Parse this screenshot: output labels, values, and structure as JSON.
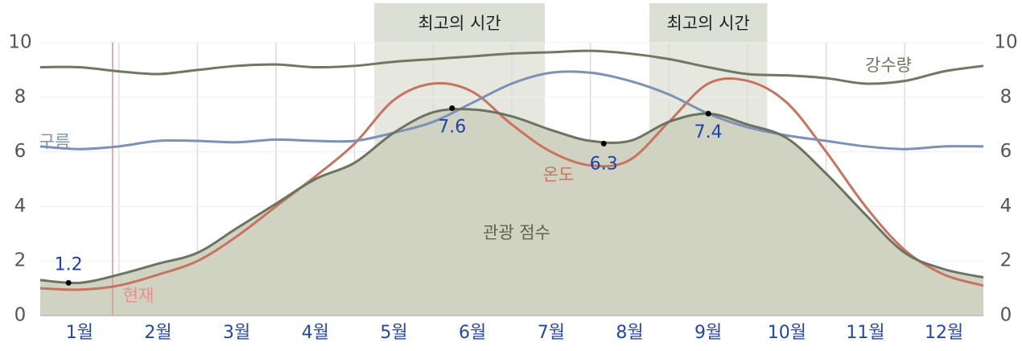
{
  "chart_data": {
    "type": "line",
    "categories": [
      "1월",
      "2월",
      "3월",
      "4월",
      "5월",
      "6월",
      "7월",
      "8월",
      "9월",
      "10월",
      "11월",
      "12월"
    ],
    "x": [
      0,
      0.5,
      1,
      1.5,
      2,
      2.5,
      3,
      3.5,
      4,
      4.5,
      5,
      5.5,
      6,
      6.5,
      7,
      7.5,
      8,
      8.5,
      9,
      9.5,
      10,
      10.5,
      11,
      11.5,
      12
    ],
    "xlim": [
      0,
      12
    ],
    "ylim": [
      0,
      10
    ],
    "yticks": [
      0,
      2,
      4,
      6,
      8,
      10
    ],
    "y2lim": [
      0,
      10
    ],
    "y2ticks": [
      0,
      2,
      4,
      6,
      8,
      10
    ],
    "grid": true,
    "series": [
      {
        "name": "관광 점수",
        "color": "#6b7361",
        "fill": "#d0d3c2",
        "area": true,
        "values": [
          1.3,
          1.2,
          1.5,
          1.9,
          2.3,
          3.2,
          4.1,
          5.0,
          5.6,
          6.7,
          7.45,
          7.55,
          7.3,
          6.8,
          6.4,
          6.4,
          7.1,
          7.4,
          7.0,
          6.5,
          5.2,
          3.7,
          2.3,
          1.7,
          1.4
        ]
      },
      {
        "name": "온도",
        "color": "#c8735f",
        "values": [
          1.0,
          0.95,
          1.1,
          1.5,
          2.0,
          2.9,
          4.0,
          5.1,
          6.3,
          7.9,
          8.5,
          8.2,
          7.0,
          6.0,
          5.5,
          5.7,
          7.1,
          8.5,
          8.6,
          7.8,
          6.0,
          4.0,
          2.4,
          1.5,
          1.1
        ]
      },
      {
        "name": "구름",
        "color": "#7b91b8",
        "values": [
          6.2,
          6.1,
          6.2,
          6.4,
          6.4,
          6.35,
          6.45,
          6.4,
          6.4,
          6.7,
          7.1,
          7.8,
          8.5,
          8.9,
          8.9,
          8.6,
          8.1,
          7.4,
          6.9,
          6.6,
          6.4,
          6.2,
          6.1,
          6.2,
          6.2
        ]
      },
      {
        "name": "강수량",
        "color": "#6e7961",
        "values": [
          9.1,
          9.1,
          8.95,
          8.85,
          9.0,
          9.15,
          9.2,
          9.1,
          9.15,
          9.3,
          9.4,
          9.5,
          9.6,
          9.65,
          9.7,
          9.6,
          9.4,
          9.1,
          8.85,
          8.8,
          8.7,
          8.5,
          8.6,
          8.95,
          9.15
        ]
      }
    ],
    "annotations": [
      {
        "x": 0.36,
        "value": 1.2
      },
      {
        "x": 5.24,
        "value": 7.6
      },
      {
        "x": 7.17,
        "value": 6.3
      },
      {
        "x": 8.5,
        "value": 7.4
      }
    ],
    "highlights": [
      {
        "label": "최고의 시간",
        "start": 4.25,
        "end": 6.42
      },
      {
        "label": "최고의 시간",
        "start": 7.75,
        "end": 9.25
      }
    ],
    "current": {
      "label": "현재",
      "x": 0.92,
      "color": "#e8908a"
    }
  }
}
